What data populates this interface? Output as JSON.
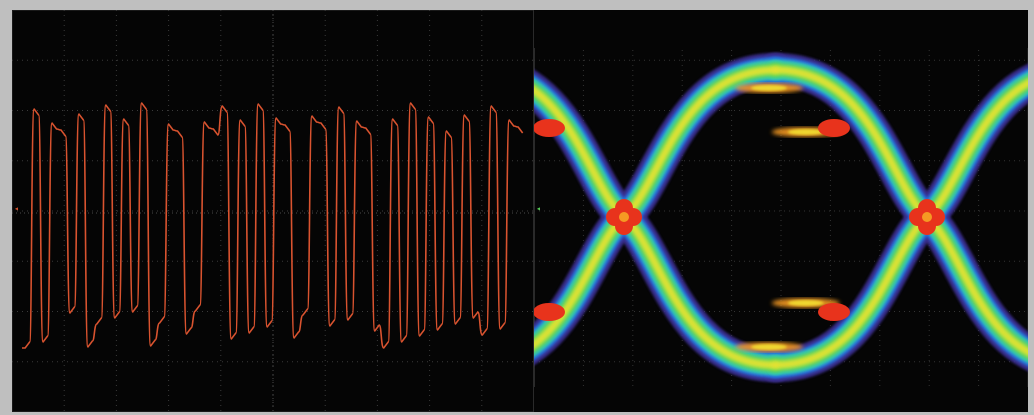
{
  "screenshot": {
    "left_panel": {
      "description_name": "oscilloscope-waveform-view",
      "trace_color": "#d9532f",
      "grid_color": "#3a3a3a",
      "background": "#050505",
      "channel_marker_color": "#d9532f"
    },
    "right_panel": {
      "description_name": "eye-diagram-view",
      "palette": [
        "#3b2d8f",
        "#2a6fdc",
        "#29c7c2",
        "#59d15a",
        "#b7e53a",
        "#f2e030",
        "#f59a23",
        "#e8331c"
      ],
      "background": "#050505",
      "channel_marker_color": "#59d15a"
    }
  }
}
